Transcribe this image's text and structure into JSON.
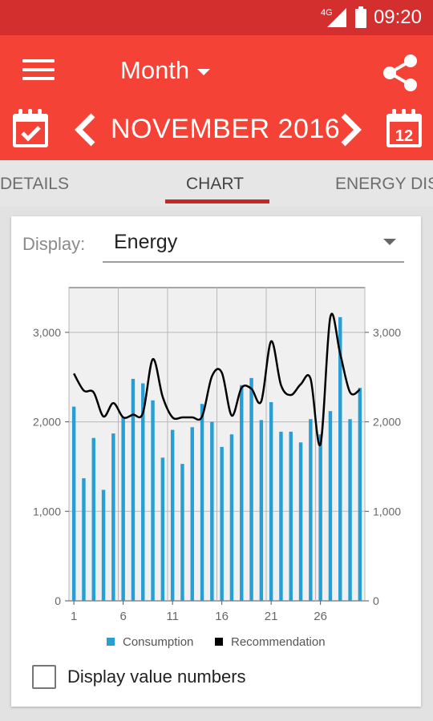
{
  "status_bar": {
    "network": "4G",
    "time": "09:20"
  },
  "toolbar": {
    "period_label": "Month",
    "month_title": "NOVEMBER 2016",
    "right_calendar_day": "12"
  },
  "tabs": [
    {
      "label": "DETAILS"
    },
    {
      "label": "CHART"
    },
    {
      "label": "ENERGY DIS"
    }
  ],
  "display": {
    "label": "Display:",
    "value": "Energy"
  },
  "checkbox": {
    "label": "Display value numbers",
    "checked": false
  },
  "colors": {
    "toolbar": "#f44336",
    "status_bar": "#d32f2f",
    "accent": "#c62828",
    "bars": "#279fd4",
    "line": "#000000"
  },
  "chart_data": {
    "type": "bar",
    "x": [
      1,
      2,
      3,
      4,
      5,
      6,
      7,
      8,
      9,
      10,
      11,
      12,
      13,
      14,
      15,
      16,
      17,
      18,
      19,
      20,
      21,
      22,
      23,
      24,
      25,
      26,
      27,
      28,
      29,
      30
    ],
    "x_ticks": [
      "1",
      "6",
      "11",
      "16",
      "21",
      "26"
    ],
    "y_ticks": [
      "0",
      "1,000",
      "2,000",
      "3,000"
    ],
    "ylim": [
      0,
      3500
    ],
    "grid": true,
    "legend_position": "bottom",
    "series": [
      {
        "name": "Consumption",
        "type": "bar",
        "color": "#279fd4",
        "values": [
          2170,
          1370,
          1820,
          1240,
          1870,
          2050,
          2480,
          2430,
          2240,
          1600,
          1910,
          1530,
          1940,
          2200,
          2000,
          1720,
          1860,
          2410,
          2490,
          2020,
          2220,
          1890,
          1890,
          1770,
          2030,
          1860,
          2120,
          3170,
          2030,
          2380
        ]
      },
      {
        "name": "Recommendation",
        "type": "line",
        "color": "#000000",
        "values": [
          2540,
          2350,
          2330,
          2060,
          2210,
          2050,
          2080,
          2100,
          2700,
          2280,
          2050,
          2050,
          2050,
          2060,
          2510,
          2550,
          2070,
          2380,
          2370,
          2230,
          2900,
          2410,
          2300,
          2420,
          2480,
          1750,
          3170,
          2760,
          2330,
          2360
        ]
      }
    ]
  }
}
